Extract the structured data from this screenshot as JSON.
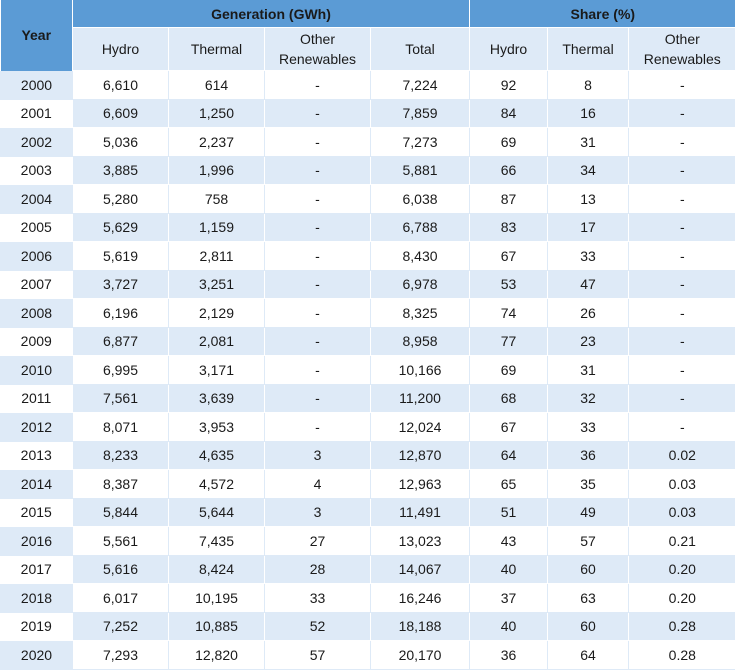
{
  "header": {
    "year": "Year",
    "generation_group": "Generation (GWh)",
    "share_group": "Share (%)",
    "gen_columns": [
      "Hydro",
      "Thermal",
      "Other Renewables",
      "Total"
    ],
    "share_columns": [
      "Hydro",
      "Thermal",
      "Other Renewables"
    ]
  },
  "rows": [
    {
      "year": "2000",
      "hydro": "6,610",
      "thermal": "614",
      "other": "-",
      "total": "7,224",
      "s_hydro": "92",
      "s_thermal": "8",
      "s_other": "-"
    },
    {
      "year": "2001",
      "hydro": "6,609",
      "thermal": "1,250",
      "other": "-",
      "total": "7,859",
      "s_hydro": "84",
      "s_thermal": "16",
      "s_other": "-"
    },
    {
      "year": "2002",
      "hydro": "5,036",
      "thermal": "2,237",
      "other": "-",
      "total": "7,273",
      "s_hydro": "69",
      "s_thermal": "31",
      "s_other": "-"
    },
    {
      "year": "2003",
      "hydro": "3,885",
      "thermal": "1,996",
      "other": "-",
      "total": "5,881",
      "s_hydro": "66",
      "s_thermal": "34",
      "s_other": "-"
    },
    {
      "year": "2004",
      "hydro": "5,280",
      "thermal": "758",
      "other": "-",
      "total": "6,038",
      "s_hydro": "87",
      "s_thermal": "13",
      "s_other": "-"
    },
    {
      "year": "2005",
      "hydro": "5,629",
      "thermal": "1,159",
      "other": "-",
      "total": "6,788",
      "s_hydro": "83",
      "s_thermal": "17",
      "s_other": "-"
    },
    {
      "year": "2006",
      "hydro": "5,619",
      "thermal": "2,811",
      "other": "-",
      "total": "8,430",
      "s_hydro": "67",
      "s_thermal": "33",
      "s_other": "-"
    },
    {
      "year": "2007",
      "hydro": "3,727",
      "thermal": "3,251",
      "other": "-",
      "total": "6,978",
      "s_hydro": "53",
      "s_thermal": "47",
      "s_other": "-"
    },
    {
      "year": "2008",
      "hydro": "6,196",
      "thermal": "2,129",
      "other": "-",
      "total": "8,325",
      "s_hydro": "74",
      "s_thermal": "26",
      "s_other": "-"
    },
    {
      "year": "2009",
      "hydro": "6,877",
      "thermal": "2,081",
      "other": "-",
      "total": "8,958",
      "s_hydro": "77",
      "s_thermal": "23",
      "s_other": "-"
    },
    {
      "year": "2010",
      "hydro": "6,995",
      "thermal": "3,171",
      "other": "-",
      "total": "10,166",
      "s_hydro": "69",
      "s_thermal": "31",
      "s_other": "-"
    },
    {
      "year": "2011",
      "hydro": "7,561",
      "thermal": "3,639",
      "other": "-",
      "total": "11,200",
      "s_hydro": "68",
      "s_thermal": "32",
      "s_other": "-"
    },
    {
      "year": "2012",
      "hydro": "8,071",
      "thermal": "3,953",
      "other": "-",
      "total": "12,024",
      "s_hydro": "67",
      "s_thermal": "33",
      "s_other": "-"
    },
    {
      "year": "2013",
      "hydro": "8,233",
      "thermal": "4,635",
      "other": "3",
      "total": "12,870",
      "s_hydro": "64",
      "s_thermal": "36",
      "s_other": "0.02"
    },
    {
      "year": "2014",
      "hydro": "8,387",
      "thermal": "4,572",
      "other": "4",
      "total": "12,963",
      "s_hydro": "65",
      "s_thermal": "35",
      "s_other": "0.03"
    },
    {
      "year": "2015",
      "hydro": "5,844",
      "thermal": "5,644",
      "other": "3",
      "total": "11,491",
      "s_hydro": "51",
      "s_thermal": "49",
      "s_other": "0.03"
    },
    {
      "year": "2016",
      "hydro": "5,561",
      "thermal": "7,435",
      "other": "27",
      "total": "13,023",
      "s_hydro": "43",
      "s_thermal": "57",
      "s_other": "0.21"
    },
    {
      "year": "2017",
      "hydro": "5,616",
      "thermal": "8,424",
      "other": "28",
      "total": "14,067",
      "s_hydro": "40",
      "s_thermal": "60",
      "s_other": "0.20"
    },
    {
      "year": "2018",
      "hydro": "6,017",
      "thermal": "10,195",
      "other": "33",
      "total": "16,246",
      "s_hydro": "37",
      "s_thermal": "63",
      "s_other": "0.20"
    },
    {
      "year": "2019",
      "hydro": "7,252",
      "thermal": "10,885",
      "other": "52",
      "total": "18,188",
      "s_hydro": "40",
      "s_thermal": "60",
      "s_other": "0.28"
    },
    {
      "year": "2020",
      "hydro": "7,293",
      "thermal": "12,820",
      "other": "57",
      "total": "20,170",
      "s_hydro": "36",
      "s_thermal": "64",
      "s_other": "0.28"
    }
  ],
  "colors": {
    "header_blue": "#5b9bd5",
    "band_light": "#deeaf7"
  }
}
